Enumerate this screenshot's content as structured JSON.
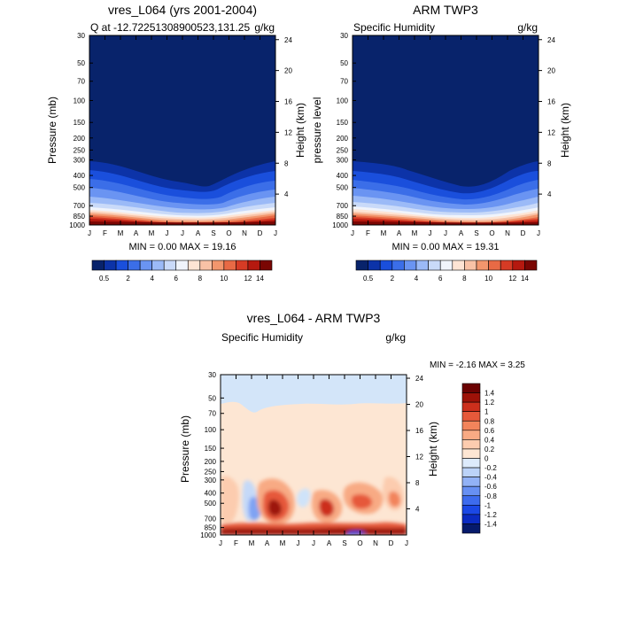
{
  "colors": {
    "abs_scale": [
      "#08236b",
      "#0c33a8",
      "#1a4fdc",
      "#3b6ee8",
      "#6a94f2",
      "#9bbaf7",
      "#c9daf9",
      "#f0f4fb",
      "#fde4d4",
      "#f8c2a6",
      "#f2966d",
      "#e86a45",
      "#d63b25",
      "#b5190f",
      "#7a0603"
    ],
    "diff_scale": [
      "#061a6b",
      "#0b2bc2",
      "#1b48e6",
      "#3d6bee",
      "#6790f3",
      "#92b2f6",
      "#bcd3f8",
      "#ddebfc",
      "#fde6d3",
      "#fcccaf",
      "#f8aa84",
      "#f2845b",
      "#e6593a",
      "#cc2f1c",
      "#9d1208",
      "#6b0202"
    ],
    "diff_neg_small": "#cfe3f9",
    "diff_pos_small": "#fde6d3"
  },
  "icons": {},
  "chart_data": [
    {
      "type": "heatmap",
      "title": "vres_L064 (yrs 2001-2004)",
      "left_label": "Q at -12.72251308900523,131.25",
      "right_label": "g/kg",
      "ylabel": "Pressure (mb)",
      "ylabel_right": "Height (km)",
      "x_ticks": [
        "J",
        "F",
        "M",
        "A",
        "M",
        "J",
        "J",
        "A",
        "S",
        "O",
        "N",
        "D",
        "J"
      ],
      "y_ticks": [
        "30",
        "50",
        "70",
        "100",
        "150",
        "200",
        "250",
        "300",
        "400",
        "500",
        "700",
        "850",
        "1000"
      ],
      "y_ticks_right": [
        "24",
        "20",
        "16",
        "12",
        "8",
        "4"
      ],
      "stats": "MIN =   0.00 MAX =  19.16",
      "colorbar_labels": [
        "0.5",
        "2",
        "4",
        "6",
        "8",
        "10",
        "12",
        "14"
      ],
      "ylim": [
        1000,
        30
      ],
      "min": 0.0,
      "max": 19.16
    },
    {
      "type": "heatmap",
      "title": "ARM TWP3",
      "left_label": "Specific Humidity",
      "right_label": "g/kg",
      "ylabel": "pressure level",
      "ylabel_right": "Height (km)",
      "x_ticks": [
        "J",
        "F",
        "M",
        "A",
        "M",
        "J",
        "J",
        "A",
        "S",
        "O",
        "N",
        "D",
        "J"
      ],
      "y_ticks": [
        "30",
        "50",
        "70",
        "100",
        "150",
        "200",
        "250",
        "300",
        "400",
        "500",
        "700",
        "850",
        "1000"
      ],
      "y_ticks_right": [
        "24",
        "20",
        "16",
        "12",
        "8",
        "4"
      ],
      "stats": "MIN =   0.00 MAX =  19.31",
      "colorbar_labels": [
        "0.5",
        "2",
        "4",
        "6",
        "8",
        "10",
        "12",
        "14"
      ],
      "ylim": [
        1000,
        30
      ],
      "min": 0.0,
      "max": 19.31
    },
    {
      "type": "heatmap",
      "title": "vres_L064 - ARM TWP3",
      "left_label": "Specific Humidity",
      "right_label": "g/kg",
      "ylabel": "Pressure (mb)",
      "ylabel_right": "Height (km)",
      "x_ticks": [
        "J",
        "F",
        "M",
        "A",
        "M",
        "J",
        "J",
        "A",
        "S",
        "O",
        "N",
        "D",
        "J"
      ],
      "y_ticks": [
        "30",
        "50",
        "70",
        "100",
        "150",
        "200",
        "250",
        "300",
        "400",
        "500",
        "700",
        "850",
        "1000"
      ],
      "y_ticks_right": [
        "24",
        "20",
        "16",
        "12",
        "8",
        "4"
      ],
      "stats": "MIN =  -2.16 MAX =   3.25",
      "colorbar_labels": [
        "1.4",
        "1.2",
        "1",
        "0.8",
        "0.6",
        "0.4",
        "0.2",
        "0",
        "-0.2",
        "-0.4",
        "-0.6",
        "-0.8",
        "-1",
        "-1.2",
        "-1.4"
      ],
      "ylim": [
        1000,
        30
      ],
      "min": -2.16,
      "max": 3.25
    }
  ]
}
